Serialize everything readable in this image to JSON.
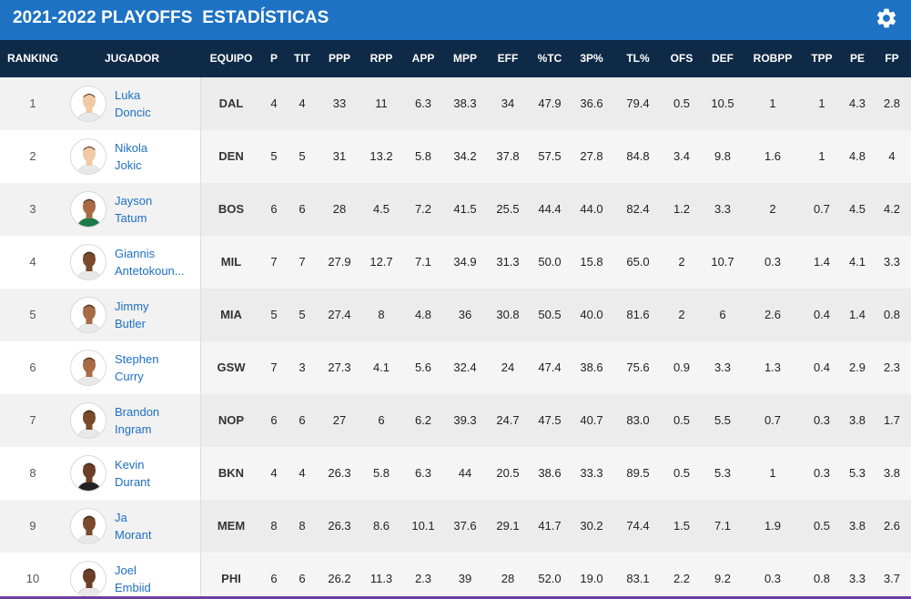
{
  "title": "2021-2022 PLAYOFFS  ESTADÍSTICAS",
  "settings_icon": "gear-icon",
  "colors": {
    "topbar": "#1d72c4",
    "header": "#0f2a47",
    "link": "#1d6fc4"
  },
  "columns": [
    "RANKING",
    "JUGADOR",
    "EQUIPO",
    "P",
    "TIT",
    "PPP",
    "RPP",
    "APP",
    "MPP",
    "EFF",
    "%TC",
    "3P%",
    "TL%",
    "OFS",
    "DEF",
    "ROBPP",
    "TPP",
    "PE",
    "FP"
  ],
  "rows": [
    {
      "rank": "1",
      "first": "Luka",
      "last": "Doncic",
      "team": "DAL",
      "p": "4",
      "tit": "4",
      "ppp": "33",
      "rpp": "11",
      "app": "6.3",
      "mpp": "38.3",
      "eff": "34",
      "tc": "47.9",
      "p3": "36.6",
      "tl": "79.4",
      "ofs": "0.5",
      "def": "10.5",
      "robpp": "1",
      "tpp": "1",
      "pe": "4.3",
      "fp": "2.8"
    },
    {
      "rank": "2",
      "first": "Nikola",
      "last": "Jokic",
      "team": "DEN",
      "p": "5",
      "tit": "5",
      "ppp": "31",
      "rpp": "13.2",
      "app": "5.8",
      "mpp": "34.2",
      "eff": "37.8",
      "tc": "57.5",
      "p3": "27.8",
      "tl": "84.8",
      "ofs": "3.4",
      "def": "9.8",
      "robpp": "1.6",
      "tpp": "1",
      "pe": "4.8",
      "fp": "4"
    },
    {
      "rank": "3",
      "first": "Jayson",
      "last": "Tatum",
      "team": "BOS",
      "p": "6",
      "tit": "6",
      "ppp": "28",
      "rpp": "4.5",
      "app": "7.2",
      "mpp": "41.5",
      "eff": "25.5",
      "tc": "44.4",
      "p3": "44.0",
      "tl": "82.4",
      "ofs": "1.2",
      "def": "3.3",
      "robpp": "2",
      "tpp": "0.7",
      "pe": "4.5",
      "fp": "4.2"
    },
    {
      "rank": "4",
      "first": "Giannis",
      "last": "Antetokoun...",
      "team": "MIL",
      "p": "7",
      "tit": "7",
      "ppp": "27.9",
      "rpp": "12.7",
      "app": "7.1",
      "mpp": "34.9",
      "eff": "31.3",
      "tc": "50.0",
      "p3": "15.8",
      "tl": "65.0",
      "ofs": "2",
      "def": "10.7",
      "robpp": "0.3",
      "tpp": "1.4",
      "pe": "4.1",
      "fp": "3.3"
    },
    {
      "rank": "5",
      "first": "Jimmy",
      "last": "Butler",
      "team": "MIA",
      "p": "5",
      "tit": "5",
      "ppp": "27.4",
      "rpp": "8",
      "app": "4.8",
      "mpp": "36",
      "eff": "30.8",
      "tc": "50.5",
      "p3": "40.0",
      "tl": "81.6",
      "ofs": "2",
      "def": "6",
      "robpp": "2.6",
      "tpp": "0.4",
      "pe": "1.4",
      "fp": "0.8"
    },
    {
      "rank": "6",
      "first": "Stephen",
      "last": "Curry",
      "team": "GSW",
      "p": "7",
      "tit": "3",
      "ppp": "27.3",
      "rpp": "4.1",
      "app": "5.6",
      "mpp": "32.4",
      "eff": "24",
      "tc": "47.4",
      "p3": "38.6",
      "tl": "75.6",
      "ofs": "0.9",
      "def": "3.3",
      "robpp": "1.3",
      "tpp": "0.4",
      "pe": "2.9",
      "fp": "2.3"
    },
    {
      "rank": "7",
      "first": "Brandon",
      "last": "Ingram",
      "team": "NOP",
      "p": "6",
      "tit": "6",
      "ppp": "27",
      "rpp": "6",
      "app": "6.2",
      "mpp": "39.3",
      "eff": "24.7",
      "tc": "47.5",
      "p3": "40.7",
      "tl": "83.0",
      "ofs": "0.5",
      "def": "5.5",
      "robpp": "0.7",
      "tpp": "0.3",
      "pe": "3.8",
      "fp": "1.7"
    },
    {
      "rank": "8",
      "first": "Kevin",
      "last": "Durant",
      "team": "BKN",
      "p": "4",
      "tit": "4",
      "ppp": "26.3",
      "rpp": "5.8",
      "app": "6.3",
      "mpp": "44",
      "eff": "20.5",
      "tc": "38.6",
      "p3": "33.3",
      "tl": "89.5",
      "ofs": "0.5",
      "def": "5.3",
      "robpp": "1",
      "tpp": "0.3",
      "pe": "5.3",
      "fp": "3.8"
    },
    {
      "rank": "9",
      "first": "Ja",
      "last": "Morant",
      "team": "MEM",
      "p": "8",
      "tit": "8",
      "ppp": "26.3",
      "rpp": "8.6",
      "app": "10.1",
      "mpp": "37.6",
      "eff": "29.1",
      "tc": "41.7",
      "p3": "30.2",
      "tl": "74.4",
      "ofs": "1.5",
      "def": "7.1",
      "robpp": "1.9",
      "tpp": "0.5",
      "pe": "3.8",
      "fp": "2.6"
    },
    {
      "rank": "10",
      "first": "Joel",
      "last": "Embiid",
      "team": "PHI",
      "p": "6",
      "tit": "6",
      "ppp": "26.2",
      "rpp": "11.3",
      "app": "2.3",
      "mpp": "39",
      "eff": "28",
      "tc": "52.0",
      "p3": "19.0",
      "tl": "83.1",
      "ofs": "2.2",
      "def": "9.2",
      "robpp": "0.3",
      "tpp": "0.8",
      "pe": "3.3",
      "fp": "3.7"
    }
  ]
}
